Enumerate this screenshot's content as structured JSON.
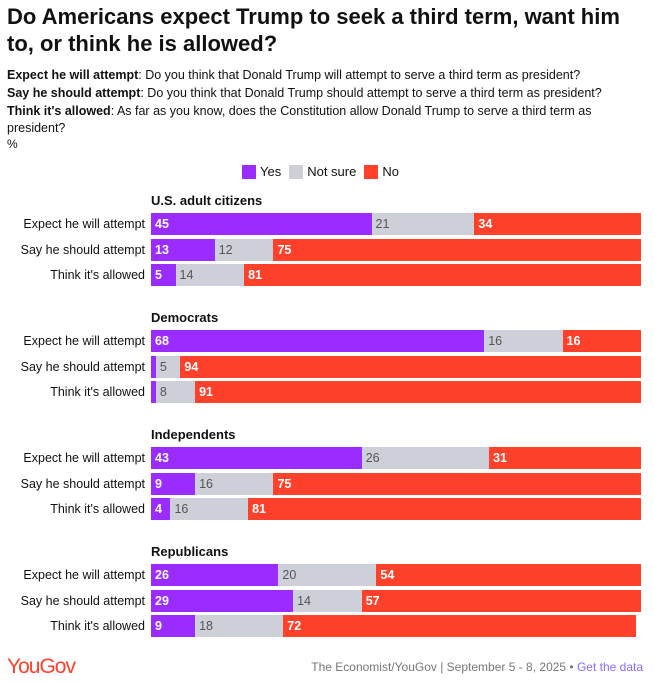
{
  "chart_data": {
    "type": "bar",
    "title": "Do Americans expect Trump to seek a third term, want him to, or think he is allowed?",
    "questions": [
      {
        "label": "Expect he will attempt",
        "text": ": Do you think that Donald Trump will attempt to serve a third term as president?"
      },
      {
        "label": "Say he should attempt",
        "text": ": Do you think that Donald Trump should attempt to serve a third term as president?"
      },
      {
        "label": "Think it's allowed",
        "text": ": As far as you know, does the Constitution allow Donald Trump to serve a third term as president?"
      }
    ],
    "unit": "%",
    "legend": [
      {
        "name": "Yes",
        "color": "#9b2cff"
      },
      {
        "name": "Not sure",
        "color": "#cdd0d8"
      },
      {
        "name": "No",
        "color": "#ff412c"
      }
    ],
    "categories": [
      "Expect he will attempt",
      "Say he should attempt",
      "Think it's allowed"
    ],
    "groups": [
      {
        "name": "U.S. adult citizens",
        "rows": [
          [
            45,
            21,
            34
          ],
          [
            13,
            12,
            75
          ],
          [
            5,
            14,
            81
          ]
        ]
      },
      {
        "name": "Democrats",
        "rows": [
          [
            68,
            16,
            16
          ],
          [
            1,
            5,
            94
          ],
          [
            1,
            8,
            91
          ]
        ]
      },
      {
        "name": "Independents",
        "rows": [
          [
            43,
            26,
            31
          ],
          [
            9,
            16,
            75
          ],
          [
            4,
            16,
            81
          ]
        ]
      },
      {
        "name": "Republicans",
        "rows": [
          [
            26,
            20,
            54
          ],
          [
            29,
            14,
            57
          ],
          [
            9,
            18,
            72
          ]
        ]
      }
    ],
    "xlim": [
      0,
      100
    ]
  },
  "footer": {
    "logo": "YouGov",
    "source": "The Economist/YouGov | September 5 - 8, 2025 • ",
    "link": "Get the data"
  }
}
